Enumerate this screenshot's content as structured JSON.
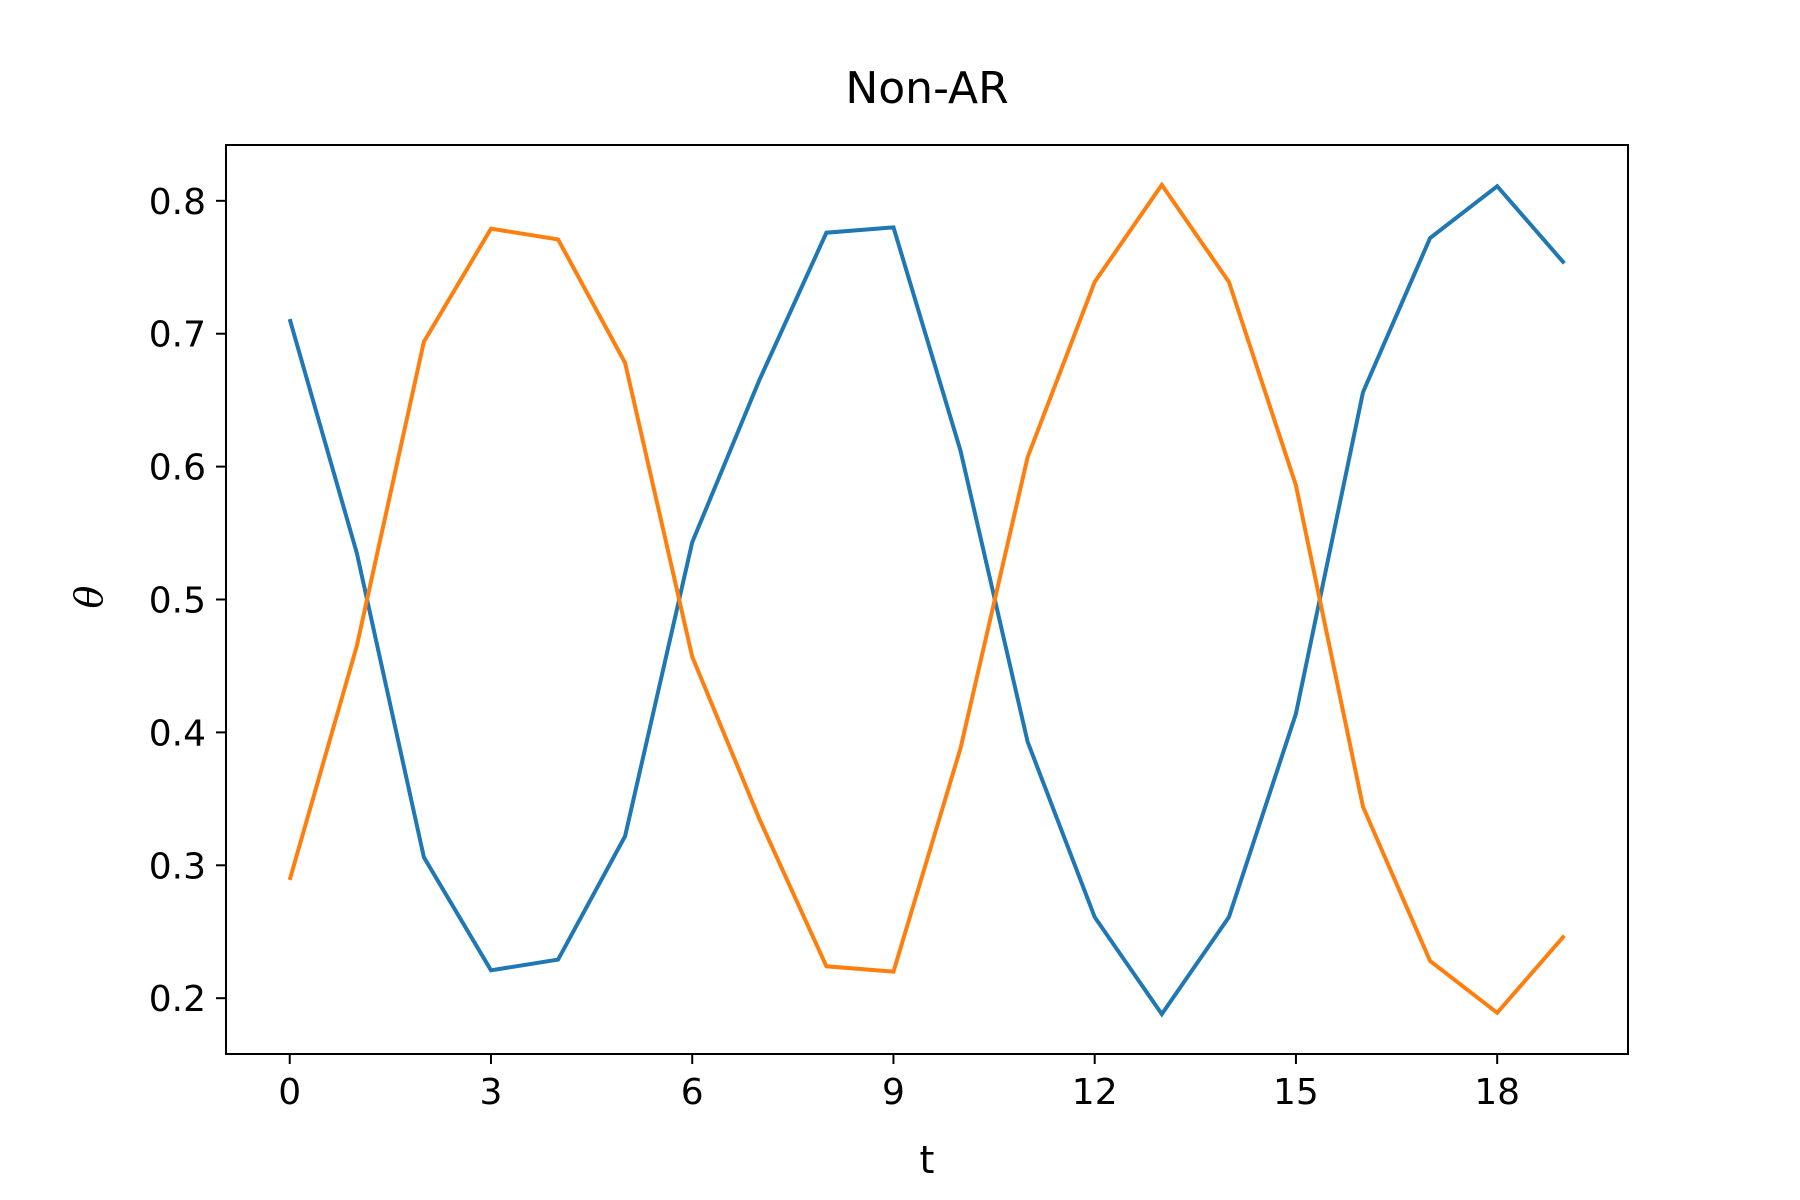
{
  "chart_data": {
    "type": "line",
    "title": "Non-AR",
    "xlabel": "t",
    "ylabel": "θ",
    "x": [
      0,
      1,
      2,
      3,
      4,
      5,
      6,
      7,
      8,
      9,
      10,
      11,
      12,
      13,
      14,
      15,
      16,
      17,
      18,
      19
    ],
    "xticks": [
      0,
      3,
      6,
      9,
      12,
      15,
      18
    ],
    "yticks": [
      0.2,
      0.3,
      0.4,
      0.5,
      0.6,
      0.7,
      0.8
    ],
    "xlim": [
      -0.95,
      19.95
    ],
    "ylim": [
      0.158,
      0.842
    ],
    "grid": false,
    "series": [
      {
        "color": "#1f77b4",
        "values": [
          0.711,
          0.535,
          0.306,
          0.221,
          0.229,
          0.322,
          0.543,
          0.665,
          0.776,
          0.78,
          0.612,
          0.393,
          0.261,
          0.188,
          0.261,
          0.414,
          0.656,
          0.772,
          0.811,
          0.753
        ]
      },
      {
        "color": "#ff7f0e",
        "values": [
          0.289,
          0.465,
          0.694,
          0.779,
          0.771,
          0.678,
          0.457,
          0.335,
          0.224,
          0.22,
          0.388,
          0.607,
          0.739,
          0.812,
          0.739,
          0.586,
          0.344,
          0.228,
          0.189,
          0.247
        ]
      }
    ]
  }
}
